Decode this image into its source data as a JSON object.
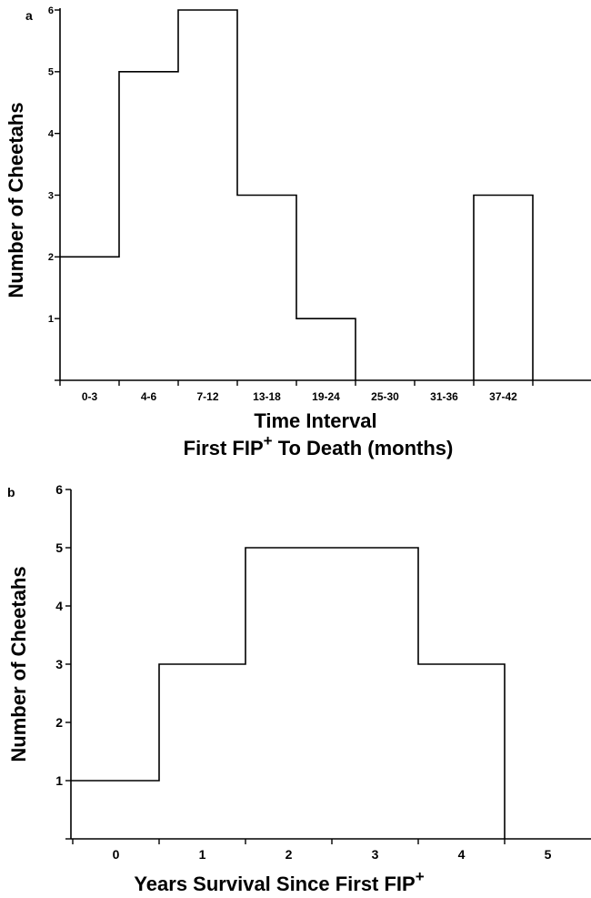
{
  "chart_data": [
    {
      "type": "bar",
      "panel_label": "a",
      "categories": [
        "0-3",
        "4-6",
        "7-12",
        "13-18",
        "19-24",
        "25-30",
        "31-36",
        "37-42"
      ],
      "values": [
        2,
        5,
        6,
        3,
        1,
        0,
        0,
        3
      ],
      "ylabel": "Number of Cheetahs",
      "xlabel_line1": "Time Interval",
      "xlabel_line2": "First FIP",
      "xlabel_line2_sup": "+",
      "xlabel_line2_tail": " To Death (months)",
      "yticks": [
        1,
        2,
        3,
        4,
        5,
        6
      ],
      "ylim": [
        0,
        6
      ],
      "grid": false
    },
    {
      "type": "bar",
      "panel_label": "b",
      "categories": [
        "0",
        "1",
        "2",
        "3",
        "4",
        "5"
      ],
      "values": [
        1,
        3,
        5,
        5,
        3,
        0
      ],
      "ylabel": "Number of Cheetahs",
      "xlabel": "Years Survival Since First FIP",
      "xlabel_sup": "+",
      "yticks": [
        1,
        2,
        3,
        4,
        5,
        6
      ],
      "ylim": [
        0,
        6
      ],
      "grid": false
    }
  ]
}
